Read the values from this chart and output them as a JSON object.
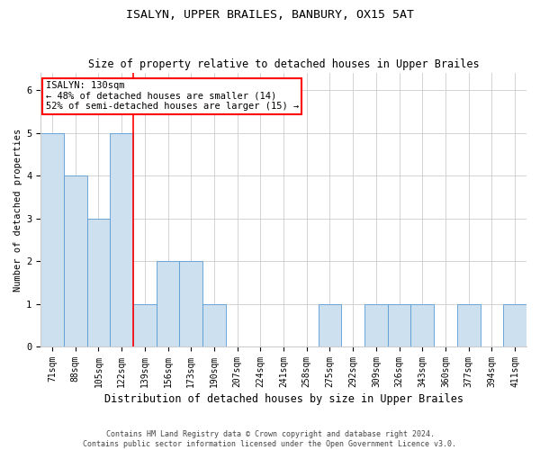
{
  "title1": "ISALYN, UPPER BRAILES, BANBURY, OX15 5AT",
  "title2": "Size of property relative to detached houses in Upper Brailes",
  "xlabel": "Distribution of detached houses by size in Upper Brailes",
  "ylabel": "Number of detached properties",
  "footnote": "Contains HM Land Registry data © Crown copyright and database right 2024.\nContains public sector information licensed under the Open Government Licence v3.0.",
  "categories": [
    "71sqm",
    "88sqm",
    "105sqm",
    "122sqm",
    "139sqm",
    "156sqm",
    "173sqm",
    "190sqm",
    "207sqm",
    "224sqm",
    "241sqm",
    "258sqm",
    "275sqm",
    "292sqm",
    "309sqm",
    "326sqm",
    "343sqm",
    "360sqm",
    "377sqm",
    "394sqm",
    "411sqm"
  ],
  "values": [
    5,
    4,
    3,
    5,
    1,
    2,
    2,
    1,
    0,
    0,
    0,
    0,
    1,
    0,
    1,
    1,
    1,
    0,
    1,
    0,
    1
  ],
  "bar_color": "#cce0f0",
  "bar_edge_color": "#5b9bd5",
  "annotation_line1": "ISALYN: 130sqm",
  "annotation_line2": "← 48% of detached houses are smaller (14)",
  "annotation_line3": "52% of semi-detached houses are larger (15) →",
  "annotation_box_color": "white",
  "annotation_box_edge_color": "red",
  "vline_x": 3.5,
  "vline_color": "red",
  "ylim": [
    0,
    6.4
  ],
  "yticks": [
    0,
    1,
    2,
    3,
    4,
    5,
    6
  ],
  "background_color": "white",
  "grid_color": "#cccccc",
  "title1_fontsize": 9.5,
  "title2_fontsize": 8.5,
  "xlabel_fontsize": 8.5,
  "ylabel_fontsize": 7.5,
  "tick_fontsize": 7,
  "annotation_fontsize": 7.5,
  "footnote_fontsize": 6.0
}
